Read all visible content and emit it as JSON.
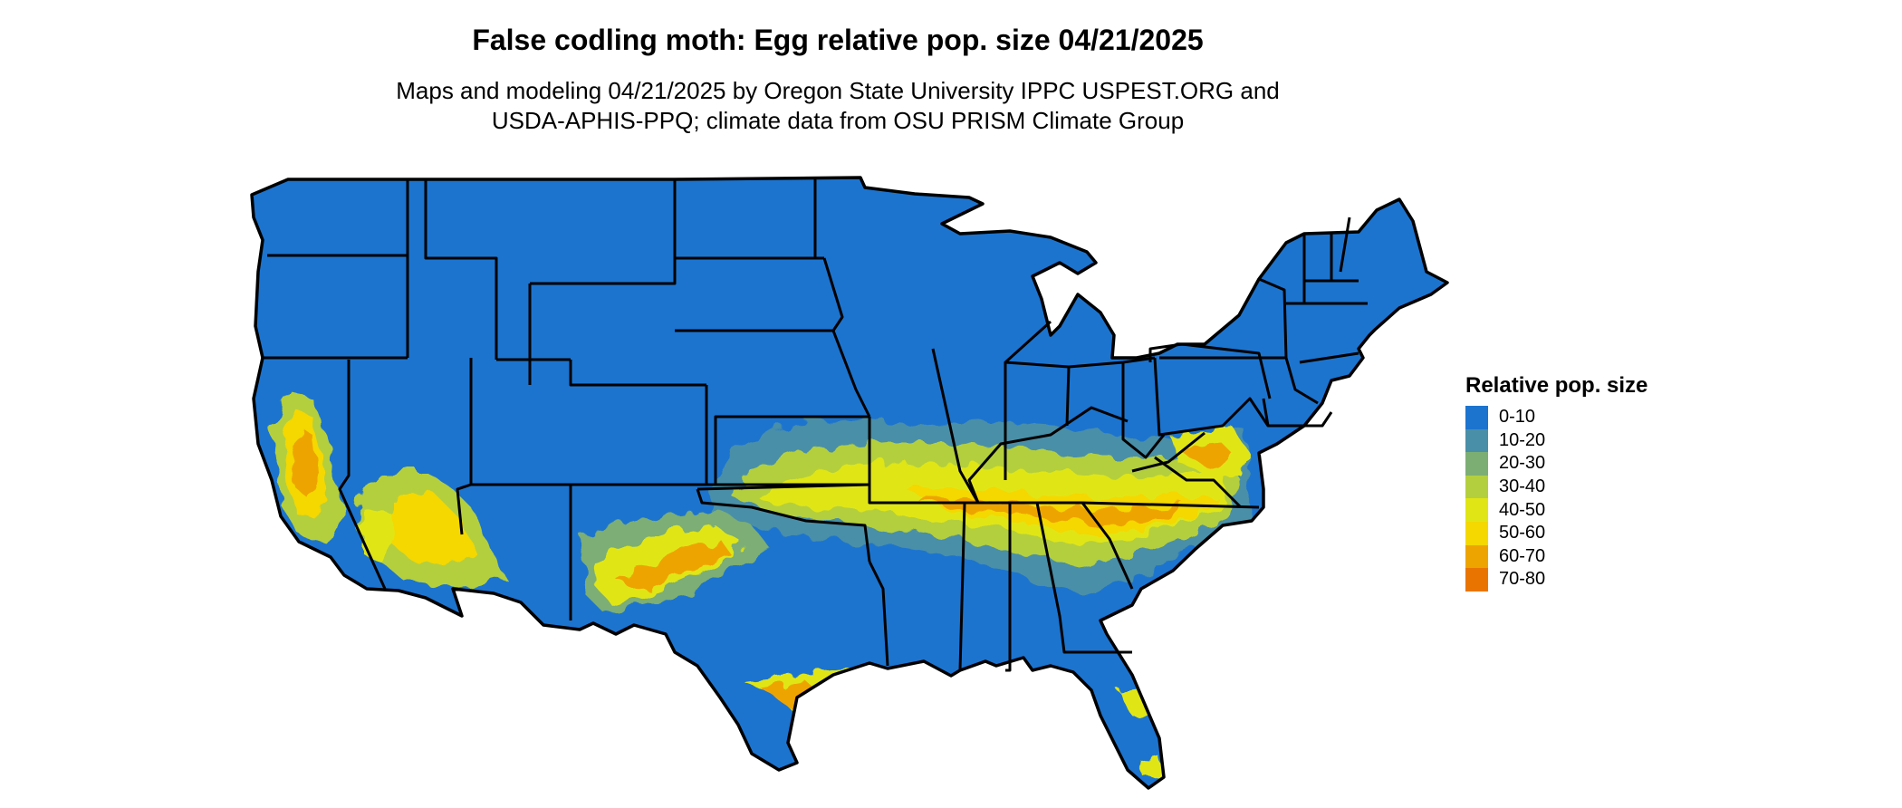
{
  "map": {
    "title": "False codling moth: Egg relative pop. size 04/21/2025",
    "subtitle_line1": "Maps and modeling 04/21/2025 by Oregon State University IPPC USPEST.ORG and",
    "subtitle_line2": "USDA-APHIS-PPQ; climate data from OSU PRISM Climate Group",
    "base_color": "#1c74cf",
    "border_color": "#000000"
  },
  "legend": {
    "title": "Relative pop. size",
    "items": [
      {
        "label": "0-10",
        "color": "#1c74cf"
      },
      {
        "label": "10-20",
        "color": "#4a8fa8"
      },
      {
        "label": "20-30",
        "color": "#7cae74"
      },
      {
        "label": "30-40",
        "color": "#b4cf3e"
      },
      {
        "label": "40-50",
        "color": "#e0e615"
      },
      {
        "label": "50-60",
        "color": "#f4d800"
      },
      {
        "label": "60-70",
        "color": "#eea400"
      },
      {
        "label": "70-80",
        "color": "#e97500"
      }
    ]
  }
}
